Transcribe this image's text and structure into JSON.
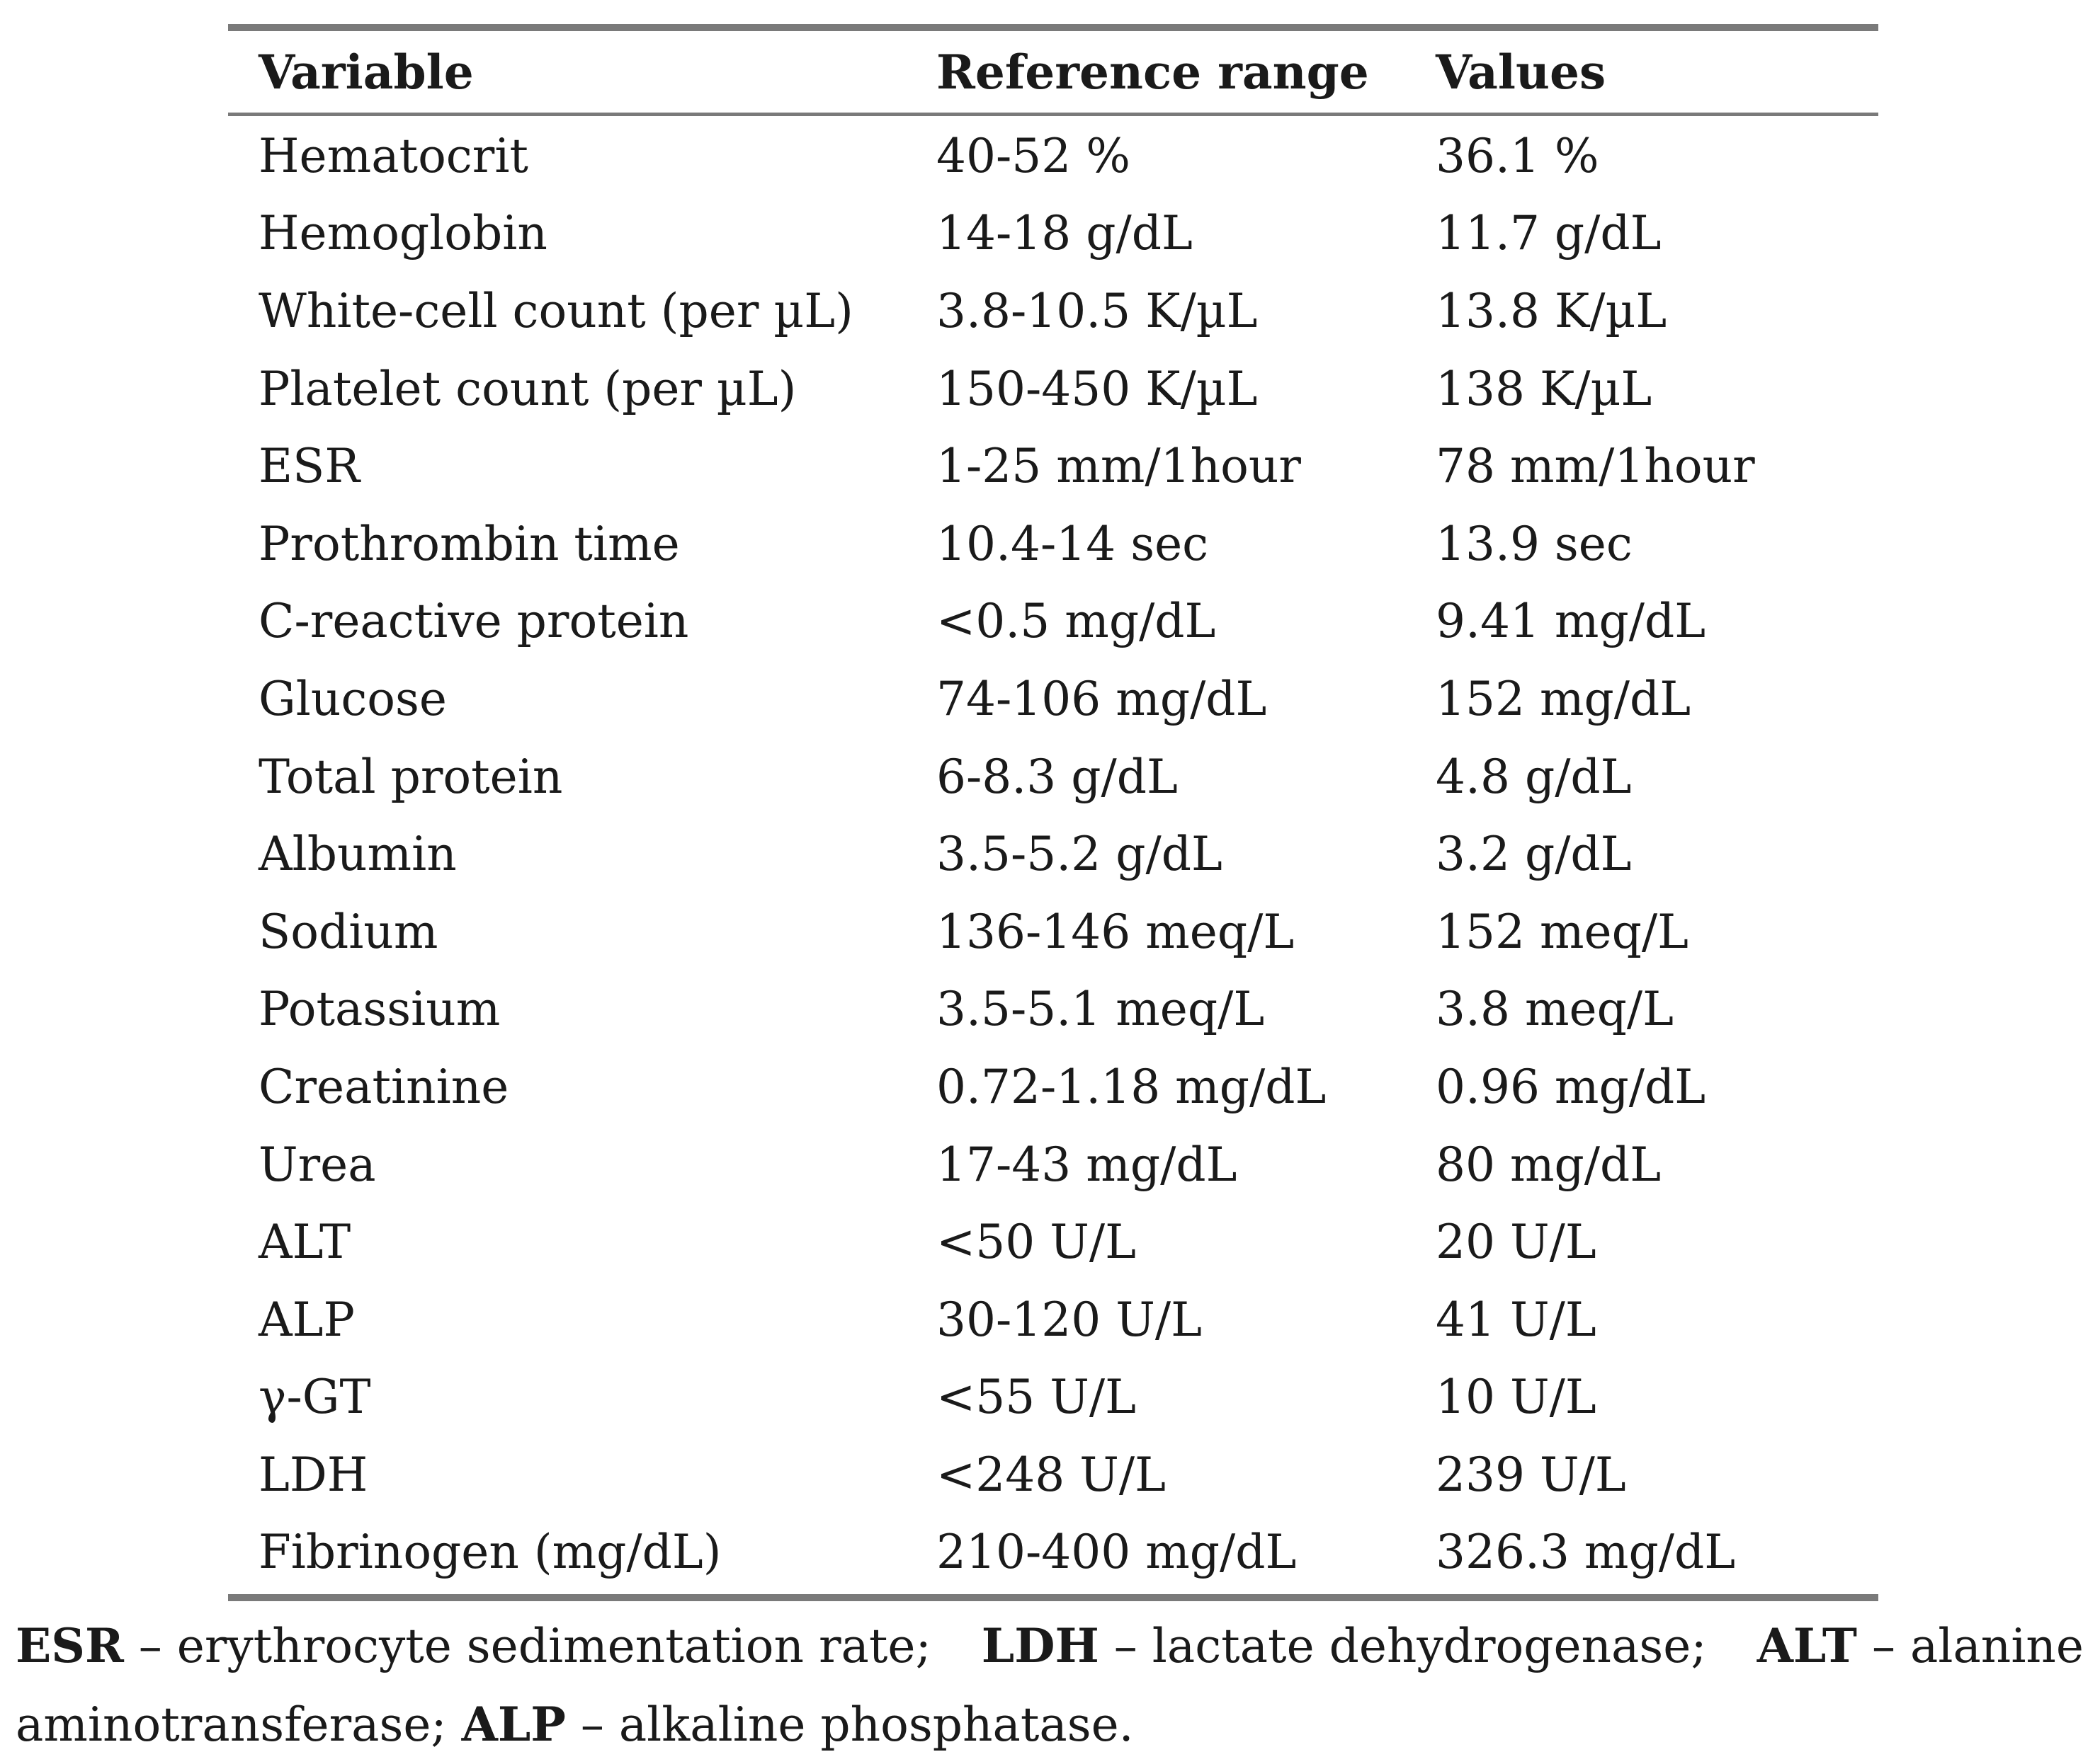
{
  "table": {
    "headers": {
      "variable": "Variable",
      "reference_range": "Reference range",
      "values": "Values"
    },
    "rows": [
      {
        "variable": "Hematocrit",
        "reference_range": "40-52 %",
        "value": "36.1 %"
      },
      {
        "variable": "Hemoglobin",
        "reference_range": "14-18 g/dL",
        "value": "11.7 g/dL"
      },
      {
        "variable": "White-cell count (per µL)",
        "reference_range": "3.8-10.5 K/µL",
        "value": "13.8 K/µL"
      },
      {
        "variable": "Platelet count (per µL)",
        "reference_range": "150-450 K/µL",
        "value": "138 K/µL"
      },
      {
        "variable": "ESR",
        "reference_range": "1-25 mm/1hour",
        "value": "78 mm/1hour"
      },
      {
        "variable": "Prothrombin time",
        "reference_range": "10.4-14 sec",
        "value": "13.9 sec"
      },
      {
        "variable": "C-reactive protein",
        "reference_range": "<0.5 mg/dL",
        "value": "9.41 mg/dL"
      },
      {
        "variable": "Glucose",
        "reference_range": "74-106 mg/dL",
        "value": "152 mg/dL"
      },
      {
        "variable": "Total protein",
        "reference_range": "6-8.3 g/dL",
        "value": "4.8 g/dL"
      },
      {
        "variable": "Albumin",
        "reference_range": "3.5-5.2 g/dL",
        "value": "3.2 g/dL"
      },
      {
        "variable": "Sodium",
        "reference_range": "136-146 meq/L",
        "value": "152 meq/L"
      },
      {
        "variable": "Potassium",
        "reference_range": "3.5-5.1 meq/L",
        "value": "3.8 meq/L"
      },
      {
        "variable": "Creatinine",
        "reference_range": "0.72-1.18 mg/dL",
        "value": "0.96 mg/dL"
      },
      {
        "variable": "Urea",
        "reference_range": "17-43 mg/dL",
        "value": "80 mg/dL"
      },
      {
        "variable": "ALT",
        "reference_range": "<50 U/L",
        "value": "20 U/L"
      },
      {
        "variable": "ALP",
        "reference_range": "30-120 U/L",
        "value": "41 U/L"
      },
      {
        "variable": "γ-GT",
        "reference_range": "<55 U/L",
        "value": "10 U/L"
      },
      {
        "variable": "LDH",
        "reference_range": "<248 U/L",
        "value": "239 U/L"
      },
      {
        "variable": "Fibrinogen (mg/dL)",
        "reference_range": "210-400 mg/dL",
        "value": "326.3 mg/dL"
      }
    ]
  },
  "footnote": {
    "items": [
      {
        "abbr": "ESR",
        "definition": " – erythrocyte sedimentation rate;"
      },
      {
        "abbr": "LDH",
        "definition": " – lactate dehydrogenase;"
      },
      {
        "abbr": "ALT",
        "definition": " – alanine"
      },
      {
        "line2_prefix": "aminotransferase; "
      },
      {
        "abbr": "ALP",
        "definition": " – alkaline phosphatase."
      }
    ]
  }
}
